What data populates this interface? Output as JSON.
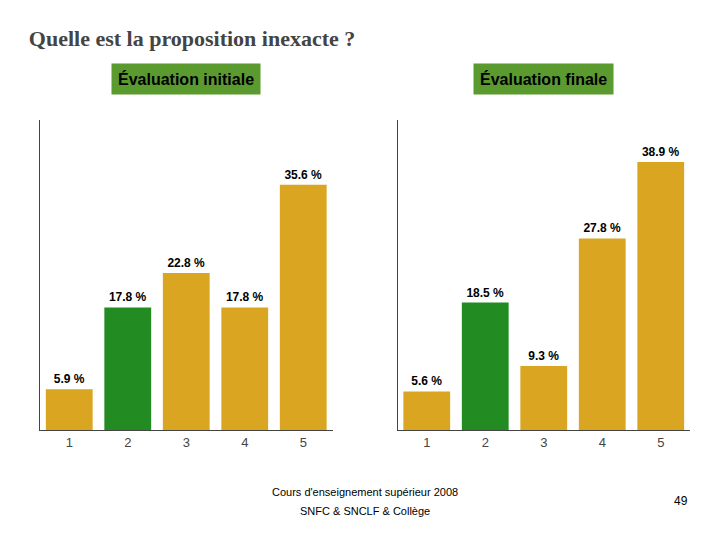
{
  "title": "Quelle est la proposition inexacte ?",
  "annotations": [
    "Cours d'enseignement supérieur 2008",
    "SNFC & SNCLF & Collège",
    "49"
  ],
  "chart_data": [
    {
      "type": "bar",
      "title": "Évaluation initiale",
      "categories": [
        1,
        2,
        3,
        4,
        5
      ],
      "values": [
        5.9,
        17.8,
        22.8,
        17.8,
        35.6
      ],
      "value_labels": [
        "5.9 %",
        "17.8 %",
        "22.8 %",
        "17.8 %",
        "35.6 %"
      ],
      "colors": [
        "#DAA520",
        "#228B22",
        "#DAA520",
        "#DAA520",
        "#DAA520"
      ],
      "ylim": [
        0,
        45
      ],
      "grid": false,
      "data_labels": true,
      "tick_labels": "x"
    },
    {
      "type": "bar",
      "title": "Évaluation finale",
      "categories": [
        1,
        2,
        3,
        4,
        5
      ],
      "values": [
        5.6,
        18.5,
        9.3,
        27.8,
        38.9
      ],
      "value_labels": [
        "5.6 %",
        "18.5 %",
        "9.3 %",
        "27.8 %",
        "38.9 %"
      ],
      "colors": [
        "#DAA520",
        "#228B22",
        "#DAA520",
        "#DAA520",
        "#DAA520"
      ],
      "ylim": [
        0,
        45
      ],
      "grid": false,
      "data_labels": true,
      "tick_labels": "x"
    }
  ]
}
